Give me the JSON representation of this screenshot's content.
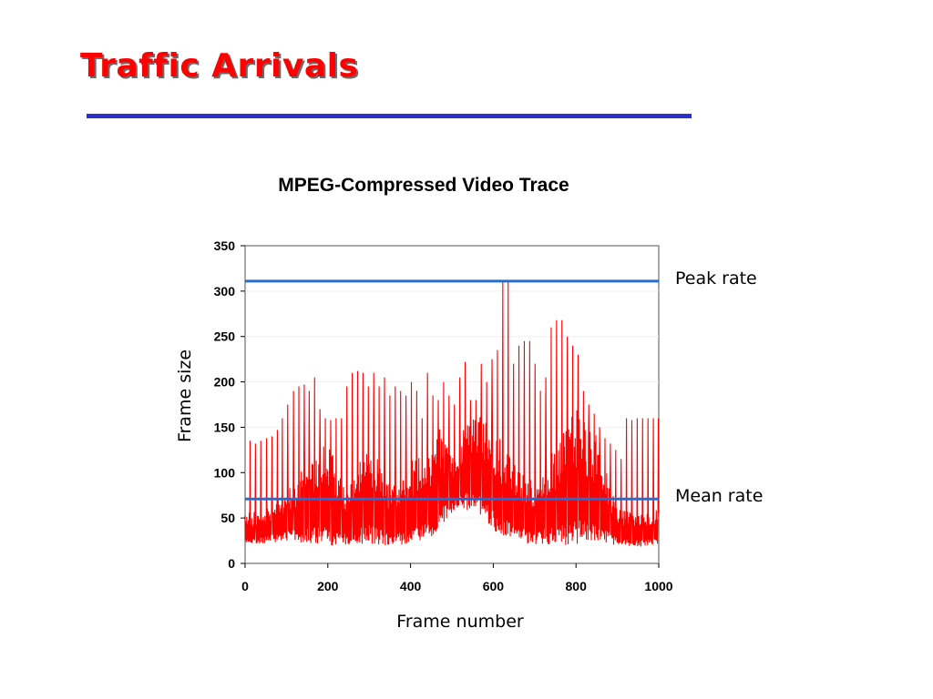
{
  "slide": {
    "title": "Traffic Arrivals"
  },
  "colors": {
    "title": "#ff0000",
    "rule": "#2b2fcc",
    "trace": "#ff0000",
    "reference_lines": "#1f6fd6"
  },
  "chart_data": {
    "type": "line",
    "title": "MPEG-Compressed Video Trace",
    "xlabel": "Frame number",
    "ylabel": "Frame size",
    "xlim": [
      0,
      1000
    ],
    "ylim": [
      0,
      350
    ],
    "xticks": [
      "0",
      "200",
      "400",
      "600",
      "800",
      "1000"
    ],
    "yticks": [
      "0",
      "50",
      "100",
      "150",
      "200",
      "250",
      "300",
      "350"
    ],
    "grid": false,
    "series": [
      {
        "color": "#ff0000",
        "gop_spikes": {
          "x": [
            12,
            25,
            38,
            52,
            65,
            78,
            90,
            103,
            117,
            130,
            143,
            155,
            168,
            181,
            194,
            207,
            220,
            233,
            246,
            259,
            272,
            285,
            298,
            311,
            324,
            337,
            350,
            363,
            376,
            389,
            402,
            415,
            428,
            441,
            454,
            467,
            480,
            493,
            506,
            519,
            532,
            545,
            558,
            571,
            584,
            597,
            610,
            623,
            636,
            649,
            662,
            675,
            688,
            701,
            714,
            727,
            740,
            753,
            766,
            779,
            792,
            805,
            818,
            831,
            844,
            857,
            870,
            883,
            896,
            909,
            922,
            935,
            948,
            961,
            974,
            987,
            999
          ],
          "y": [
            135,
            132,
            135,
            138,
            140,
            147,
            160,
            175,
            190,
            195,
            197,
            190,
            205,
            170,
            160,
            158,
            160,
            160,
            195,
            210,
            212,
            210,
            195,
            210,
            195,
            205,
            185,
            195,
            190,
            185,
            200,
            190,
            160,
            210,
            185,
            180,
            200,
            185,
            175,
            205,
            222,
            180,
            180,
            220,
            200,
            225,
            235,
            310,
            310,
            220,
            240,
            245,
            245,
            220,
            190,
            205,
            260,
            268,
            268,
            250,
            240,
            230,
            190,
            175,
            165,
            150,
            138,
            132,
            125,
            115,
            160,
            158,
            160,
            160,
            160,
            160,
            160
          ]
        },
        "envelope": {
          "x": [
            0,
            50,
            100,
            150,
            200,
            250,
            300,
            350,
            400,
            450,
            470,
            500,
            550,
            600,
            650,
            700,
            750,
            800,
            850,
            900,
            950,
            1000
          ],
          "low": [
            20,
            22,
            25,
            22,
            18,
            20,
            20,
            18,
            20,
            25,
            40,
            55,
            60,
            35,
            25,
            20,
            20,
            20,
            22,
            20,
            18,
            20
          ],
          "high": [
            55,
            60,
            80,
            110,
            135,
            80,
            140,
            90,
            115,
            125,
            150,
            120,
            170,
            150,
            110,
            90,
            130,
            170,
            140,
            60,
            55,
            60
          ]
        }
      }
    ],
    "reference_lines": [
      {
        "label": "Peak rate",
        "y": 311,
        "color": "#1f6fd6"
      },
      {
        "label": "Mean rate",
        "y": 71,
        "color": "#1f6fd6"
      }
    ]
  }
}
